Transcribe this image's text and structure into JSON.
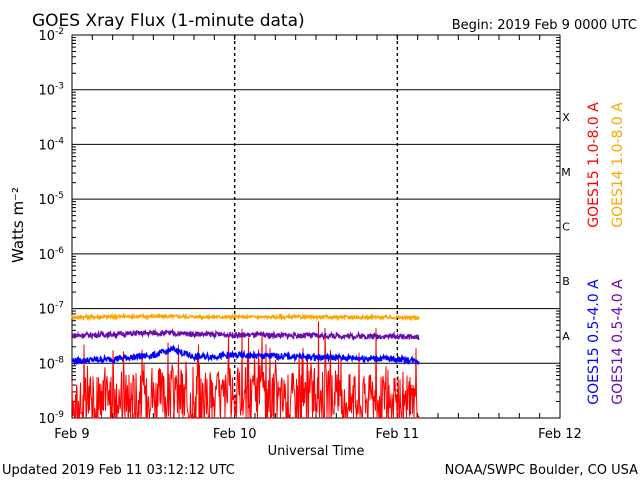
{
  "header": {
    "title": "GOES Xray Flux (1-minute data)",
    "begin": "Begin:  2019 Feb 9 0000 UTC"
  },
  "footer": {
    "updated": "Updated 2019 Feb 11 03:12:12 UTC",
    "credit": "NOAA/SWPC Boulder, CO USA"
  },
  "colors": {
    "goes15_long": "#ff0000",
    "goes14_long": "#ffa500",
    "goes15_short": "#0000ff",
    "goes14_short": "#6a0dad"
  },
  "chart_data": {
    "type": "line",
    "title": "GOES Xray Flux (1-minute data)",
    "xlabel": "Universal Time",
    "ylabel": "Watts m⁻²",
    "yscale": "log",
    "ylim": [
      1e-09,
      0.01
    ],
    "xlim": [
      "2019-02-09",
      "2019-02-12"
    ],
    "grid": true,
    "x_ticks": [
      "Feb 9",
      "Feb 10",
      "Feb 11",
      "Feb 12"
    ],
    "y_ticks": [
      {
        "value": 1e-09,
        "base": "10",
        "exp": "-9"
      },
      {
        "value": 1e-08,
        "base": "10",
        "exp": "-8"
      },
      {
        "value": 1e-07,
        "base": "10",
        "exp": "-7"
      },
      {
        "value": 1e-06,
        "base": "10",
        "exp": "-6"
      },
      {
        "value": 1e-05,
        "base": "10",
        "exp": "-5"
      },
      {
        "value": 0.0001,
        "base": "10",
        "exp": "-4"
      },
      {
        "value": 0.001,
        "base": "10",
        "exp": "-3"
      },
      {
        "value": 0.01,
        "base": "10",
        "exp": "-2"
      }
    ],
    "flare_classes": [
      {
        "label": "A",
        "value": 1e-08
      },
      {
        "label": "B",
        "value": 1e-07
      },
      {
        "label": "C",
        "value": 1e-06
      },
      {
        "label": "M",
        "value": 1e-05
      },
      {
        "label": "X",
        "value": 0.0001
      }
    ],
    "data_end": "2019-02-11 03:12",
    "series": [
      {
        "name": "GOES15 1.0-8.0 A",
        "color": "#ff0000",
        "x": [
          "2019-02-09 00:00",
          "2019-02-09 06:00",
          "2019-02-09 12:00",
          "2019-02-09 18:00",
          "2019-02-10 00:00",
          "2019-02-10 06:00",
          "2019-02-10 12:00",
          "2019-02-10 18:00",
          "2019-02-11 00:00",
          "2019-02-11 03:00"
        ],
        "values": [
          1.5e-09,
          2e-09,
          2.5e-09,
          2e-09,
          2.5e-09,
          2e-09,
          2.5e-09,
          2e-09,
          1.5e-09,
          1.5e-09
        ]
      },
      {
        "name": "GOES14 1.0-8.0 A",
        "color": "#ffa500",
        "x": [
          "2019-02-09 00:00",
          "2019-02-09 12:00",
          "2019-02-10 00:00",
          "2019-02-10 12:00",
          "2019-02-11 00:00",
          "2019-02-11 03:00"
        ],
        "values": [
          7e-08,
          7.2e-08,
          7e-08,
          7e-08,
          6.9e-08,
          6.8e-08
        ]
      },
      {
        "name": "GOES15 0.5-4.0 A",
        "color": "#0000ff",
        "x": [
          "2019-02-09 00:00",
          "2019-02-09 06:00",
          "2019-02-09 12:00",
          "2019-02-09 15:00",
          "2019-02-09 18:00",
          "2019-02-10 00:00",
          "2019-02-10 12:00",
          "2019-02-11 00:00",
          "2019-02-11 03:00"
        ],
        "values": [
          1.1e-08,
          1.2e-08,
          1.4e-08,
          1.8e-08,
          1.3e-08,
          1.4e-08,
          1.3e-08,
          1.2e-08,
          1.1e-08
        ]
      },
      {
        "name": "GOES14 0.5-4.0 A",
        "color": "#6a0dad",
        "x": [
          "2019-02-09 00:00",
          "2019-02-09 12:00",
          "2019-02-10 00:00",
          "2019-02-10 12:00",
          "2019-02-11 00:00",
          "2019-02-11 03:00"
        ],
        "values": [
          3.2e-08,
          3.6e-08,
          3.3e-08,
          3.2e-08,
          3.1e-08,
          3e-08
        ]
      }
    ]
  }
}
